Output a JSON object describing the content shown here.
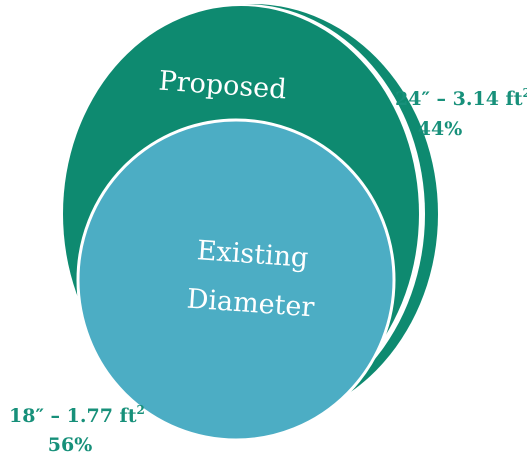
{
  "outer_circle": {
    "label": "Proposed",
    "size": "24″",
    "dash": " – ",
    "area": "3.14 ft",
    "exponent": "2",
    "percent": "44%",
    "color": "#0e8a70"
  },
  "inner_circle": {
    "label_line1": "Existing",
    "label_line2": "Diameter",
    "size": "18″",
    "dash": " – ",
    "area": "1.77 ft",
    "exponent": "2",
    "percent": "56%",
    "color": "#4cadc4"
  },
  "colors": {
    "outer_fill": "#0e8a70",
    "inner_fill": "#4cadc4",
    "ring_stroke": "#ffffff",
    "stat_text": "#17907a"
  }
}
